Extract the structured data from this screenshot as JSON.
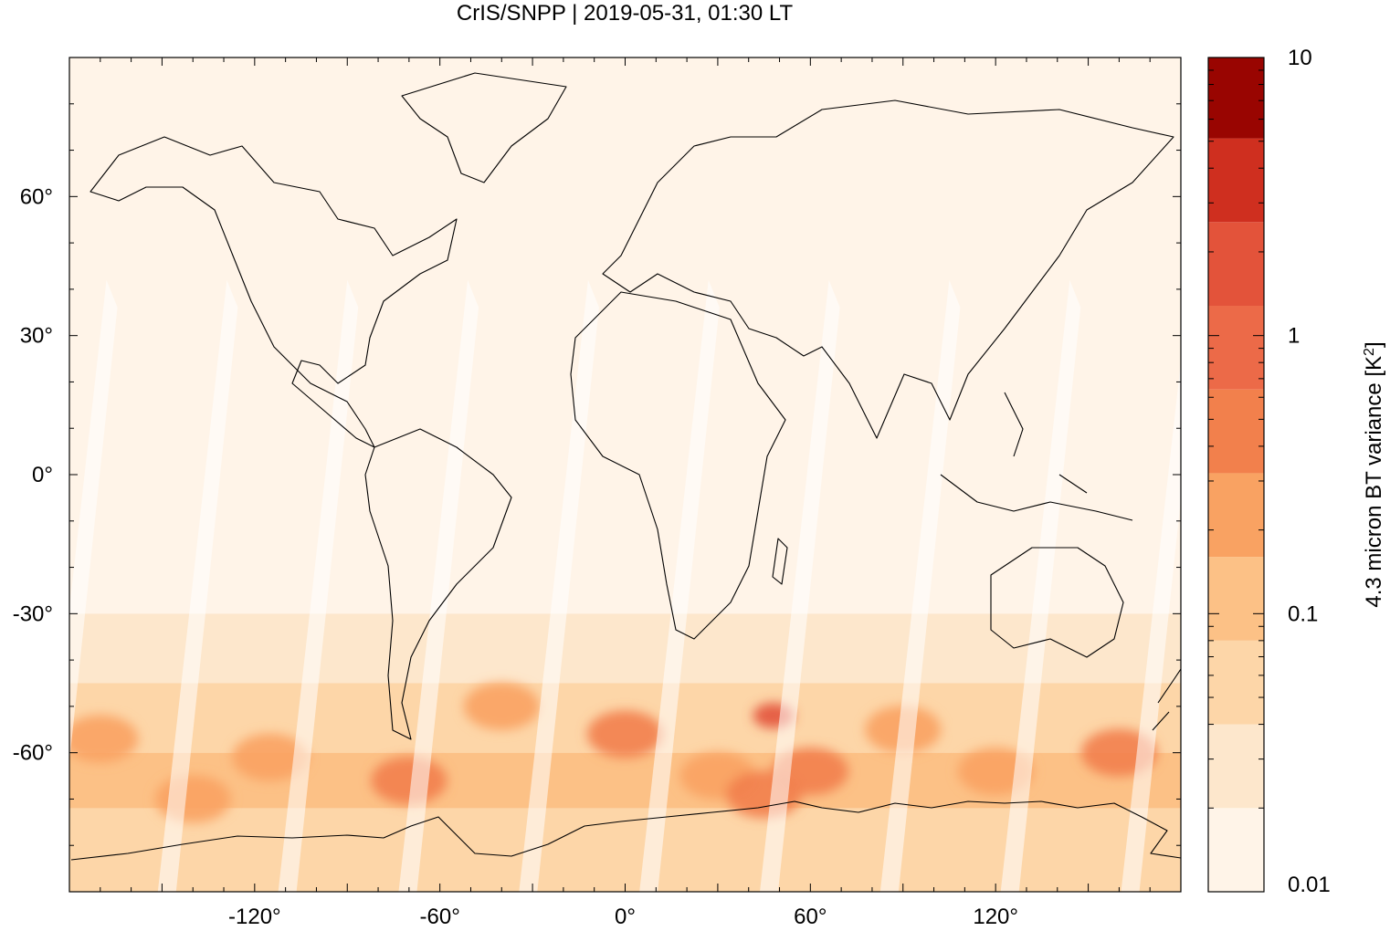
{
  "chart_data": {
    "type": "heatmap",
    "title": "CrIS/SNPP | 2019-05-31, 01:30 LT",
    "xlabel": "",
    "ylabel": "",
    "xlim": [
      -180,
      180
    ],
    "ylim": [
      -90,
      90
    ],
    "x_ticks": [
      {
        "value": -120,
        "label": "-120°"
      },
      {
        "value": -60,
        "label": "-60°"
      },
      {
        "value": 0,
        "label": "0°"
      },
      {
        "value": 60,
        "label": "60°"
      },
      {
        "value": 120,
        "label": "120°"
      }
    ],
    "y_ticks": [
      {
        "value": 60,
        "label": "60°"
      },
      {
        "value": 30,
        "label": "30°"
      },
      {
        "value": 0,
        "label": "0°"
      },
      {
        "value": -30,
        "label": "-30°"
      },
      {
        "value": -60,
        "label": "-60°"
      }
    ],
    "grid": false,
    "colorbar": {
      "label": "4.3 micron BT variance [K",
      "label_sup": "2",
      "label_end": "]",
      "scale": "log",
      "range": [
        0.01,
        10
      ],
      "ticks": [
        {
          "value": 0.01,
          "label": "0.01"
        },
        {
          "value": 0.1,
          "label": "0.1"
        },
        {
          "value": 1,
          "label": "1"
        },
        {
          "value": 10,
          "label": "10"
        }
      ],
      "levels": [
        {
          "from": 0.01,
          "to": 0.02,
          "color": "#fff4e8"
        },
        {
          "from": 0.02,
          "to": 0.04,
          "color": "#fde7cc"
        },
        {
          "from": 0.04,
          "to": 0.08,
          "color": "#fdd6a8"
        },
        {
          "from": 0.08,
          "to": 0.16,
          "color": "#fcc186"
        },
        {
          "from": 0.16,
          "to": 0.32,
          "color": "#f9a262"
        },
        {
          "from": 0.32,
          "to": 0.64,
          "color": "#f2804c"
        },
        {
          "from": 0.64,
          "to": 1.28,
          "color": "#ec6a48"
        },
        {
          "from": 1.28,
          "to": 2.56,
          "color": "#e3533a"
        },
        {
          "from": 2.56,
          "to": 5.12,
          "color": "#cf2f1f"
        },
        {
          "from": 5.12,
          "to": 10,
          "color": "#990501"
        }
      ]
    },
    "bands": [
      {
        "lat_from": 90,
        "lat_to": -30,
        "value": 0.013
      },
      {
        "lat_from": -30,
        "lat_to": -45,
        "value": 0.03
      },
      {
        "lat_from": -45,
        "lat_to": -60,
        "value": 0.06
      },
      {
        "lat_from": -60,
        "lat_to": -72,
        "value": 0.08
      },
      {
        "lat_from": -72,
        "lat_to": -90,
        "value": 0.04
      }
    ],
    "hotspots": [
      {
        "lon": 48,
        "lat": -52,
        "value": 1.6
      },
      {
        "lon": 0,
        "lat": -56,
        "value": 0.4
      },
      {
        "lon": -70,
        "lat": -66,
        "value": 0.35
      },
      {
        "lon": 60,
        "lat": -64,
        "value": 0.4
      },
      {
        "lon": 160,
        "lat": -60,
        "value": 0.35
      },
      {
        "lon": -170,
        "lat": -57,
        "value": 0.3
      },
      {
        "lon": -115,
        "lat": -61,
        "value": 0.3
      },
      {
        "lon": 30,
        "lat": -65,
        "value": 0.3
      },
      {
        "lon": 90,
        "lat": -55,
        "value": 0.25
      },
      {
        "lon": -40,
        "lat": -50,
        "value": 0.25
      },
      {
        "lon": 120,
        "lat": -64,
        "value": 0.25
      },
      {
        "lon": -140,
        "lat": -70,
        "value": 0.2
      },
      {
        "lon": 45,
        "lat": -69,
        "value": 0.35
      }
    ],
    "swath_gaps": [
      {
        "lon_north": -168,
        "lon_south": -188
      },
      {
        "lon_north": -129,
        "lon_south": -149
      },
      {
        "lon_north": -90,
        "lon_south": -110
      },
      {
        "lon_north": -51,
        "lon_south": -71
      },
      {
        "lon_north": -12,
        "lon_south": -32
      },
      {
        "lon_north": 27,
        "lon_south": 7
      },
      {
        "lon_north": 66,
        "lon_south": 46
      },
      {
        "lon_north": 105,
        "lon_south": 85
      },
      {
        "lon_north": 144,
        "lon_south": 124
      },
      {
        "lon_north": 183,
        "lon_south": 163
      }
    ]
  }
}
